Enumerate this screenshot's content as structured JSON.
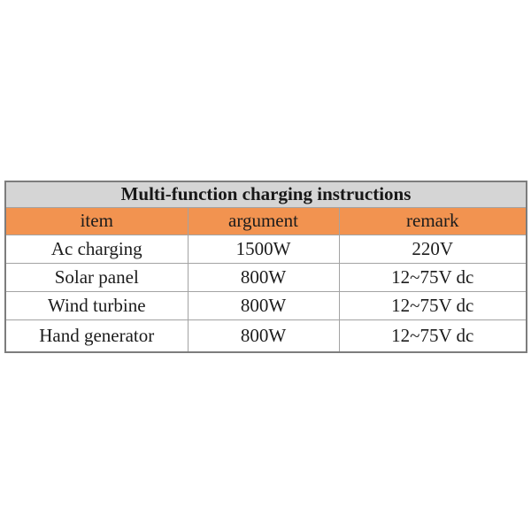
{
  "page": {
    "background_color": "#ffffff"
  },
  "table": {
    "title": "Multi-function charging instructions",
    "columns": {
      "item": "item",
      "argument": "argument",
      "remark": "remark"
    },
    "rows": [
      {
        "item": "Ac charging",
        "argument": "1500W",
        "remark": "220V"
      },
      {
        "item": "Solar panel",
        "argument": "800W",
        "remark": "12~75V dc"
      },
      {
        "item": "Wind turbine",
        "argument": "800W",
        "remark": "12~75V dc"
      },
      {
        "item": "Hand generator",
        "argument": "800W",
        "remark": "12~75V dc"
      }
    ],
    "colors": {
      "title_background": "#d5d5d5",
      "header_background": "#f29350",
      "row_background": "#ffffff",
      "outer_border": "#7d7d7d",
      "inner_border": "#a3a3a3",
      "text": "#1c1c1c"
    }
  }
}
